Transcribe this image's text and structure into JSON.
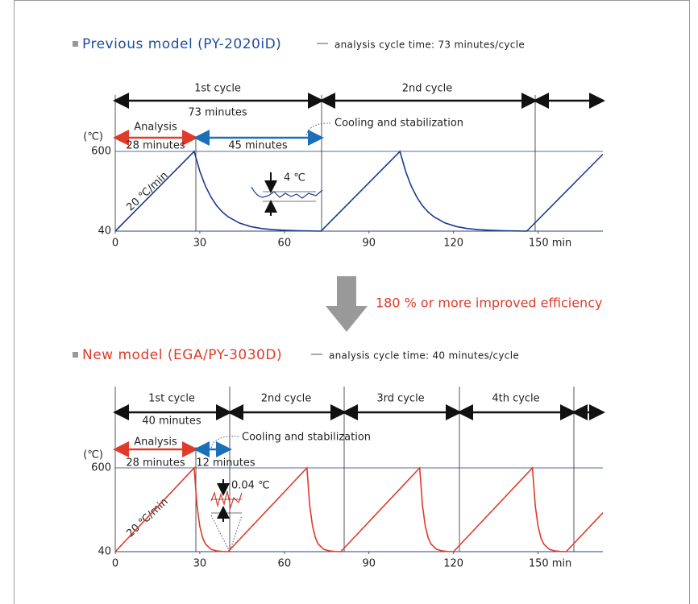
{
  "chart_data": [
    {
      "type": "line",
      "title": "Previous model (PY-2020iD)",
      "subtitle": "analysis cycle time: 73 minutes/cycle",
      "ylabel": "(℃)",
      "color": "#1a3a8f",
      "title_color": "#1f4e9c",
      "x": [
        0,
        28,
        30,
        32,
        34,
        36,
        38,
        40,
        44,
        48,
        52,
        56,
        60,
        65,
        73,
        101,
        103,
        105,
        107,
        109,
        111,
        113,
        117,
        121,
        125,
        129,
        133,
        138,
        146,
        173
      ],
      "values": [
        40,
        600,
        461,
        356,
        278,
        218,
        174,
        141,
        97,
        72,
        58,
        50,
        46,
        43,
        40,
        600,
        461,
        356,
        278,
        218,
        174,
        141,
        97,
        72,
        58,
        50,
        46,
        43,
        40,
        580
      ],
      "xlim": [
        0,
        173
      ],
      "ylim": [
        40,
        600
      ],
      "xticks": [
        0,
        30,
        60,
        90,
        120,
        {
          "value": 150,
          "label": "150 min"
        }
      ],
      "yticks": [
        40,
        600
      ],
      "grid": true,
      "annotations": [
        "1st cycle",
        "2nd cycle",
        "73 minutes",
        "Analysis",
        "28 minutes",
        "45 minutes",
        "Cooling and stabilization",
        "4 ℃",
        "20 ℃/min"
      ]
    },
    {
      "type": "line",
      "title": "New model (EGA/PY-3030D)",
      "subtitle": "analysis cycle time: 40 minutes/cycle",
      "ylabel": "(℃)",
      "color": "#e03a2a",
      "title_color": "#e03a2a",
      "x": [
        0,
        28,
        29,
        30,
        31,
        32,
        34,
        36,
        38,
        40,
        68,
        69,
        70,
        71,
        72,
        74,
        76,
        78,
        80,
        108,
        109,
        110,
        111,
        112,
        114,
        116,
        118,
        120,
        148,
        149,
        150,
        151,
        152,
        154,
        156,
        158,
        160,
        173
      ],
      "values": [
        40,
        600,
        347,
        209,
        133,
        91,
        55,
        45,
        41,
        40,
        600,
        347,
        209,
        133,
        91,
        55,
        45,
        41,
        40,
        600,
        347,
        209,
        133,
        91,
        55,
        45,
        41,
        40,
        600,
        347,
        209,
        133,
        91,
        55,
        45,
        41,
        40,
        300
      ],
      "xlim": [
        0,
        173
      ],
      "ylim": [
        40,
        600
      ],
      "xticks": [
        0,
        30,
        60,
        90,
        120,
        {
          "value": 150,
          "label": "150 min"
        }
      ],
      "yticks": [
        40,
        600
      ],
      "grid": true,
      "annotations": [
        "1st cycle",
        "2nd cycle",
        "3rd cycle",
        "4th cycle",
        "40 minutes",
        "Analysis",
        "28 minutes",
        "12 minutes",
        "Cooling and stabilization",
        "0.04 ℃",
        "20 ℃/min"
      ]
    }
  ],
  "callout": "180 % or more improved efficiency"
}
